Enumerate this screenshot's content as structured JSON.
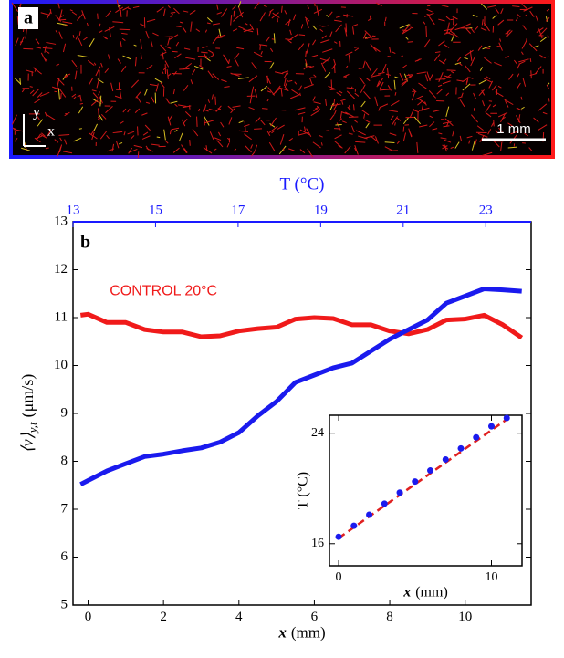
{
  "panel_a": {
    "label": "a",
    "axis_y": "y",
    "axis_x": "x",
    "scale_bar": "1 mm"
  },
  "chart_data": [
    {
      "type": "line",
      "label": "b",
      "xlabel_var": "x",
      "xlabel_unit": "(mm)",
      "ylabel_var": "⟨v⟩",
      "ylabel_sub": "y,t",
      "ylabel_unit": "(μm/s)",
      "xlim": [
        -0.4,
        11.75
      ],
      "xticks": [
        0,
        2,
        4,
        6,
        8,
        10
      ],
      "ylim": [
        5,
        13
      ],
      "yticks": [
        5,
        6,
        7,
        8,
        9,
        10,
        11,
        12,
        13
      ],
      "top_axis": {
        "label": "T (°C)",
        "xlim": [
          13,
          24.1
        ],
        "xticks": [
          13,
          15,
          17,
          19,
          21,
          23
        ],
        "color": "#1a1aff"
      },
      "series": [
        {
          "name": "CONTROL 20°C",
          "color": "#f01a1a",
          "x": [
            -0.2,
            0,
            0.5,
            1,
            1.5,
            2,
            2.5,
            3,
            3.5,
            4,
            4.5,
            5,
            5.5,
            6,
            6.5,
            7,
            7.5,
            8,
            8.5,
            9,
            9.5,
            10,
            10.5,
            11,
            11.5
          ],
          "values": [
            11.05,
            11.07,
            10.9,
            10.9,
            10.75,
            10.7,
            10.7,
            10.6,
            10.62,
            10.72,
            10.77,
            10.8,
            10.97,
            11.0,
            10.98,
            10.85,
            10.85,
            10.72,
            10.66,
            10.75,
            10.95,
            10.97,
            11.05,
            10.85,
            10.58
          ]
        },
        {
          "color": "#1a1aee",
          "x": [
            -0.2,
            0,
            0.5,
            1,
            1.5,
            2,
            2.5,
            3,
            3.5,
            4,
            4.5,
            5,
            5.5,
            6,
            6.5,
            7,
            7.5,
            8,
            8.5,
            9,
            9.5,
            10,
            10.5,
            11,
            11.5
          ],
          "values": [
            7.52,
            7.6,
            7.8,
            7.95,
            8.1,
            8.15,
            8.22,
            8.28,
            8.4,
            8.6,
            8.95,
            9.25,
            9.65,
            9.8,
            9.95,
            10.05,
            10.3,
            10.55,
            10.75,
            10.95,
            11.3,
            11.45,
            11.6,
            11.58,
            11.55
          ]
        }
      ]
    },
    {
      "type": "scatter",
      "xlabel_var": "x",
      "xlabel_unit": "(mm)",
      "ylabel": "T (°C)",
      "xlim": [
        -0.6,
        12
      ],
      "xticks": [
        0,
        10
      ],
      "ylim": [
        14.4,
        25.3
      ],
      "yticks": [
        16,
        24
      ],
      "color": "#1a1aee",
      "x": [
        0,
        1,
        2,
        3,
        4,
        5,
        6,
        7,
        8,
        9,
        10,
        11
      ],
      "values": [
        16.5,
        17.3,
        18.1,
        18.9,
        19.7,
        20.5,
        21.3,
        22.1,
        22.9,
        23.7,
        24.5,
        25.1
      ],
      "fit": {
        "color": "#e02020",
        "x": [
          0,
          11
        ],
        "values": [
          16.4,
          25.0
        ]
      }
    }
  ]
}
